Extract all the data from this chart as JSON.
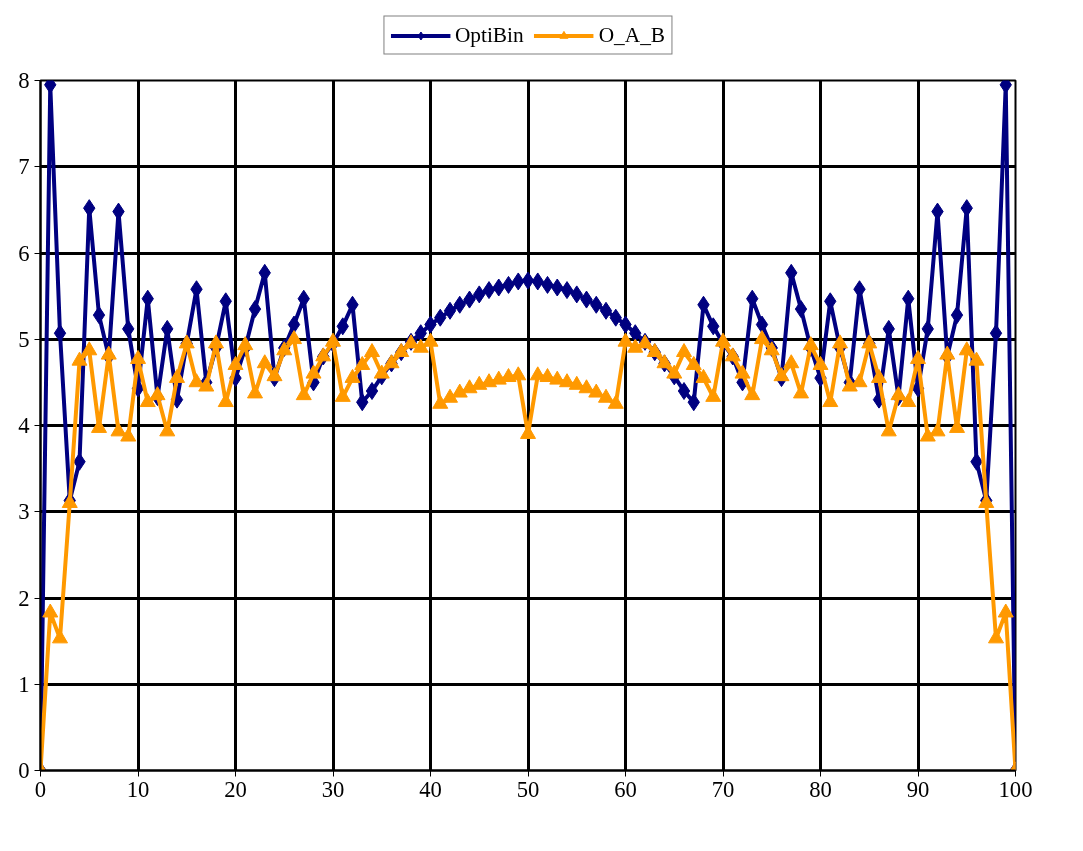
{
  "chart_data": {
    "type": "line",
    "x": [
      0,
      1,
      2,
      3,
      4,
      5,
      6,
      7,
      8,
      9,
      10,
      11,
      12,
      13,
      14,
      15,
      16,
      17,
      18,
      19,
      20,
      21,
      22,
      23,
      24,
      25,
      26,
      27,
      28,
      29,
      30,
      31,
      32,
      33,
      34,
      35,
      36,
      37,
      38,
      39,
      40,
      41,
      42,
      43,
      44,
      45,
      46,
      47,
      48,
      49,
      50,
      51,
      52,
      53,
      54,
      55,
      56,
      57,
      58,
      59,
      60,
      61,
      62,
      63,
      64,
      65,
      66,
      67,
      68,
      69,
      70,
      71,
      72,
      73,
      74,
      75,
      76,
      77,
      78,
      79,
      80,
      81,
      82,
      83,
      84,
      85,
      86,
      87,
      88,
      89,
      90,
      91,
      92,
      93,
      94,
      95,
      96,
      97,
      98,
      99,
      100
    ],
    "series": [
      {
        "name": "OptiBin",
        "color": "#000080",
        "marker": "diamond",
        "values": [
          0,
          7.95,
          5.07,
          3.13,
          3.58,
          6.52,
          5.28,
          4.8,
          6.48,
          5.12,
          4.43,
          5.47,
          4.33,
          5.12,
          4.3,
          4.95,
          5.58,
          4.5,
          4.9,
          5.44,
          4.55,
          4.9,
          5.35,
          5.77,
          4.55,
          4.9,
          5.17,
          5.47,
          4.5,
          4.8,
          4.95,
          5.15,
          5.4,
          4.27,
          4.4,
          4.57,
          4.72,
          4.85,
          4.97,
          5.07,
          5.17,
          5.25,
          5.33,
          5.4,
          5.46,
          5.52,
          5.57,
          5.6,
          5.63,
          5.67,
          5.68,
          5.67,
          5.63,
          5.6,
          5.57,
          5.52,
          5.46,
          5.4,
          5.33,
          5.25,
          5.17,
          5.07,
          4.97,
          4.85,
          4.72,
          4.57,
          4.4,
          4.27,
          5.4,
          5.15,
          4.95,
          4.8,
          4.5,
          5.47,
          5.17,
          4.9,
          4.55,
          5.77,
          5.35,
          4.9,
          4.55,
          5.44,
          4.9,
          4.5,
          5.58,
          4.95,
          4.3,
          5.12,
          4.33,
          5.47,
          4.43,
          5.12,
          6.48,
          4.8,
          5.28,
          6.52,
          3.58,
          3.13,
          5.07,
          7.95,
          0
        ]
      },
      {
        "name": "O_A_B",
        "color": "#ff9900",
        "marker": "triangle",
        "values": [
          0,
          1.83,
          1.53,
          3.1,
          4.75,
          4.87,
          3.97,
          4.82,
          3.93,
          3.87,
          4.77,
          4.27,
          4.35,
          3.93,
          4.55,
          4.95,
          4.5,
          4.45,
          4.95,
          4.27,
          4.7,
          4.93,
          4.37,
          4.72,
          4.57,
          4.87,
          5.0,
          4.35,
          4.6,
          4.8,
          4.97,
          4.33,
          4.55,
          4.7,
          4.85,
          4.6,
          4.72,
          4.85,
          4.95,
          4.9,
          4.97,
          4.25,
          4.32,
          4.38,
          4.43,
          4.47,
          4.5,
          4.53,
          4.56,
          4.58,
          3.9,
          4.58,
          4.56,
          4.53,
          4.5,
          4.47,
          4.43,
          4.38,
          4.32,
          4.25,
          4.97,
          4.9,
          4.95,
          4.85,
          4.72,
          4.6,
          4.85,
          4.7,
          4.55,
          4.33,
          4.97,
          4.8,
          4.6,
          4.35,
          5.0,
          4.87,
          4.57,
          4.72,
          4.37,
          4.93,
          4.7,
          4.27,
          4.95,
          4.45,
          4.5,
          4.95,
          4.55,
          3.93,
          4.35,
          4.27,
          4.77,
          3.87,
          3.93,
          4.82,
          3.97,
          4.87,
          4.75,
          3.1,
          1.53,
          1.83,
          0
        ]
      }
    ],
    "xlim": [
      0,
      100
    ],
    "xticks": [
      0,
      10,
      20,
      30,
      40,
      50,
      60,
      70,
      80,
      90,
      100
    ],
    "ylim": [
      0,
      8
    ],
    "yticks": [
      0,
      1,
      2,
      3,
      4,
      5,
      6,
      7,
      8
    ],
    "grid": true,
    "legend": "top",
    "line_style": "solid"
  }
}
